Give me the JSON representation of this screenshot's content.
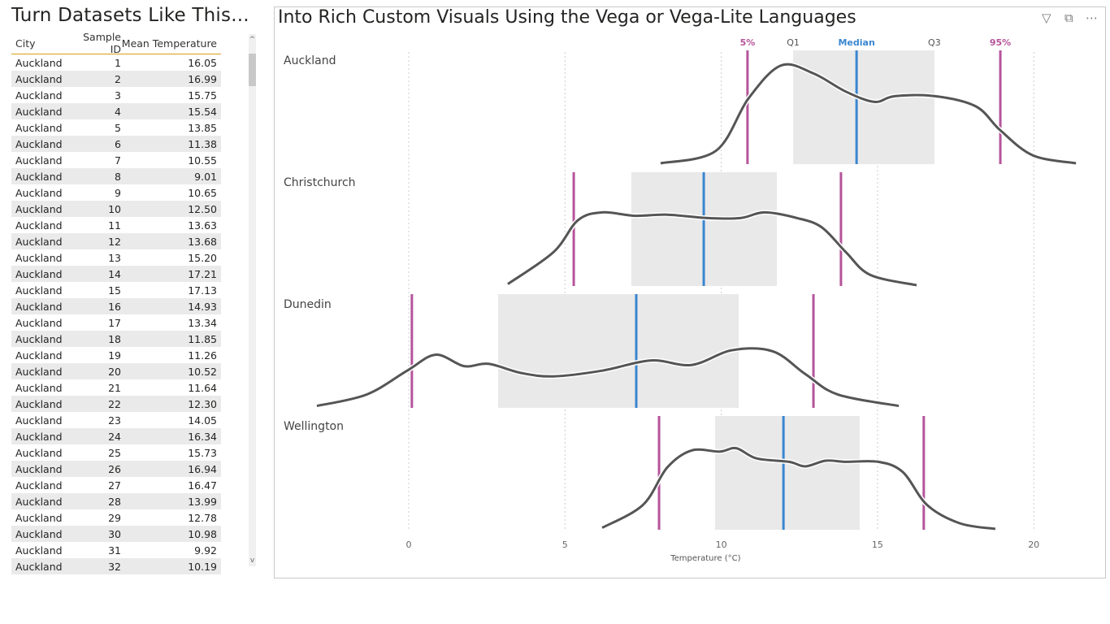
{
  "left_title": "Turn Datasets Like This...",
  "table": {
    "headers": [
      "City",
      "Sample ID",
      "Mean Temperature"
    ],
    "rows": [
      [
        "Auckland",
        "1",
        "16.05"
      ],
      [
        "Auckland",
        "2",
        "16.99"
      ],
      [
        "Auckland",
        "3",
        "15.75"
      ],
      [
        "Auckland",
        "4",
        "15.54"
      ],
      [
        "Auckland",
        "5",
        "13.85"
      ],
      [
        "Auckland",
        "6",
        "11.38"
      ],
      [
        "Auckland",
        "7",
        "10.55"
      ],
      [
        "Auckland",
        "8",
        "9.01"
      ],
      [
        "Auckland",
        "9",
        "10.65"
      ],
      [
        "Auckland",
        "10",
        "12.50"
      ],
      [
        "Auckland",
        "11",
        "13.63"
      ],
      [
        "Auckland",
        "12",
        "13.68"
      ],
      [
        "Auckland",
        "13",
        "15.20"
      ],
      [
        "Auckland",
        "14",
        "17.21"
      ],
      [
        "Auckland",
        "15",
        "17.13"
      ],
      [
        "Auckland",
        "16",
        "14.93"
      ],
      [
        "Auckland",
        "17",
        "13.34"
      ],
      [
        "Auckland",
        "18",
        "11.85"
      ],
      [
        "Auckland",
        "19",
        "11.26"
      ],
      [
        "Auckland",
        "20",
        "10.52"
      ],
      [
        "Auckland",
        "21",
        "11.64"
      ],
      [
        "Auckland",
        "22",
        "12.30"
      ],
      [
        "Auckland",
        "23",
        "14.05"
      ],
      [
        "Auckland",
        "24",
        "16.34"
      ],
      [
        "Auckland",
        "25",
        "15.73"
      ],
      [
        "Auckland",
        "26",
        "16.94"
      ],
      [
        "Auckland",
        "27",
        "16.47"
      ],
      [
        "Auckland",
        "28",
        "13.99"
      ],
      [
        "Auckland",
        "29",
        "12.78"
      ],
      [
        "Auckland",
        "30",
        "10.98"
      ],
      [
        "Auckland",
        "31",
        "9.92"
      ],
      [
        "Auckland",
        "32",
        "10.19"
      ]
    ]
  },
  "chart_title": "Into Rich Custom Visuals Using the Vega or Vega-Lite Languages",
  "colors": {
    "pct": "#b5549a",
    "median": "#3a86d0",
    "box": "#e9e9e9",
    "curve": "#555555"
  },
  "chart_data": {
    "type": "violin",
    "xlabel": "Temperature (°C)",
    "xlim": [
      -3.2,
      21.8
    ],
    "xticks": [
      0,
      5,
      10,
      15,
      20
    ],
    "legend": {
      "p5": "5%",
      "q1": "Q1",
      "median": "Median",
      "q3": "Q3",
      "p95": "95%"
    },
    "series": [
      {
        "name": "Auckland",
        "p5": 10.84,
        "q1": 12.3,
        "median": 14.33,
        "q3": 16.82,
        "p95": 18.93,
        "density": [
          [
            8.06,
            0
          ],
          [
            9.83,
            0.11
          ],
          [
            10.87,
            0.57
          ],
          [
            11.91,
            0.86
          ],
          [
            12.95,
            0.79
          ],
          [
            13.99,
            0.63
          ],
          [
            14.9,
            0.54
          ],
          [
            15.55,
            0.59
          ],
          [
            16.85,
            0.59
          ],
          [
            18.15,
            0.5
          ],
          [
            18.93,
            0.29
          ],
          [
            19.97,
            0.07
          ],
          [
            21.35,
            0
          ]
        ]
      },
      {
        "name": "Christchurch",
        "p5": 5.28,
        "q1": 7.12,
        "median": 9.44,
        "q3": 11.78,
        "p95": 13.83,
        "density": [
          [
            3.17,
            0.01
          ],
          [
            4.63,
            0.29
          ],
          [
            5.41,
            0.57
          ],
          [
            6.19,
            0.64
          ],
          [
            7.23,
            0.61
          ],
          [
            8.27,
            0.62
          ],
          [
            9.57,
            0.59
          ],
          [
            10.61,
            0.59
          ],
          [
            11.39,
            0.64
          ],
          [
            12.43,
            0.59
          ],
          [
            13.21,
            0.51
          ],
          [
            13.99,
            0.29
          ],
          [
            14.77,
            0.09
          ],
          [
            16.25,
            0
          ]
        ]
      },
      {
        "name": "Dunedin",
        "p5": 0.1,
        "q1": 2.86,
        "median": 7.28,
        "q3": 10.56,
        "p95": 12.95,
        "density": [
          [
            -2.94,
            0.01
          ],
          [
            -1.35,
            0.11
          ],
          [
            -0.05,
            0.32
          ],
          [
            0.86,
            0.46
          ],
          [
            1.77,
            0.36
          ],
          [
            2.55,
            0.38
          ],
          [
            3.59,
            0.3
          ],
          [
            4.63,
            0.27
          ],
          [
            6.19,
            0.32
          ],
          [
            7.75,
            0.41
          ],
          [
            9.05,
            0.37
          ],
          [
            10.35,
            0.5
          ],
          [
            11.65,
            0.49
          ],
          [
            12.69,
            0.29
          ],
          [
            13.73,
            0.11
          ],
          [
            15.68,
            0.01
          ]
        ]
      },
      {
        "name": "Wellington",
        "p5": 8.01,
        "q1": 9.8,
        "median": 11.99,
        "q3": 14.43,
        "p95": 16.48,
        "density": [
          [
            6.19,
            0.01
          ],
          [
            7.49,
            0.21
          ],
          [
            8.27,
            0.54
          ],
          [
            9.05,
            0.69
          ],
          [
            9.96,
            0.68
          ],
          [
            10.48,
            0.71
          ],
          [
            11.13,
            0.62
          ],
          [
            12.17,
            0.59
          ],
          [
            12.69,
            0.55
          ],
          [
            13.34,
            0.6
          ],
          [
            13.99,
            0.59
          ],
          [
            15.03,
            0.59
          ],
          [
            15.81,
            0.5
          ],
          [
            16.59,
            0.21
          ],
          [
            17.63,
            0.05
          ],
          [
            18.77,
            0
          ]
        ]
      }
    ]
  }
}
